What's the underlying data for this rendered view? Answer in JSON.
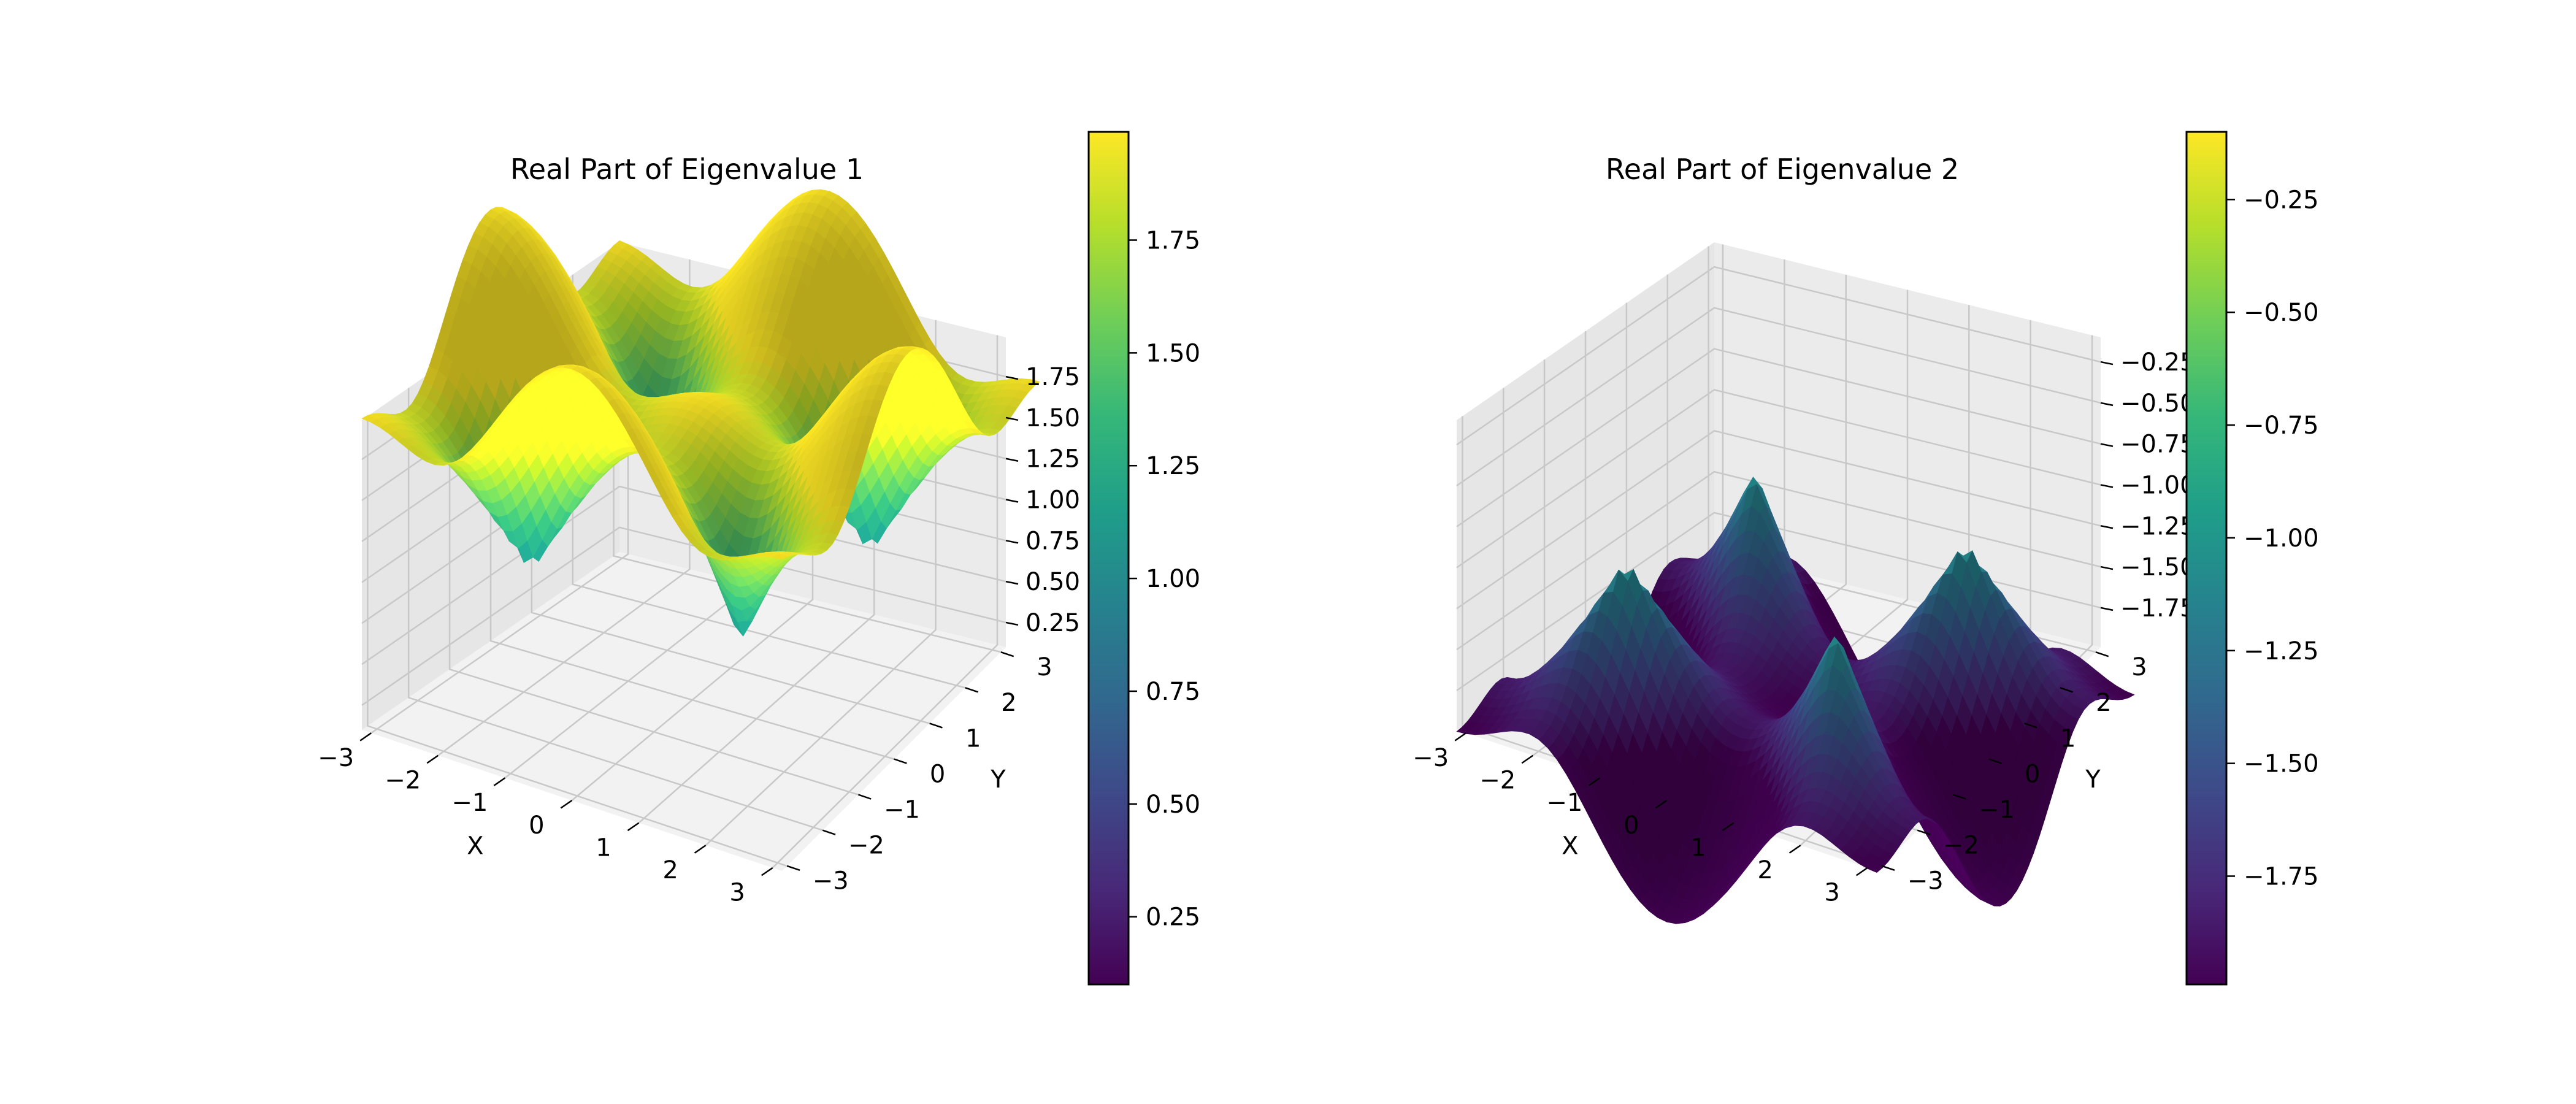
{
  "figure": {
    "colormap": "viridis",
    "colors": [
      "#440154",
      "#482878",
      "#3e4989",
      "#31688e",
      "#26828e",
      "#1f9e89",
      "#35b779",
      "#6ece58",
      "#b5de2b",
      "#fde725"
    ]
  },
  "chart_data": [
    {
      "type": "surface3d",
      "title": "Real Part of Eigenvalue 1",
      "xlabel": "X",
      "ylabel": "Y",
      "zlabel": "",
      "xlim": [
        -3.14,
        3.14
      ],
      "ylim": [
        -3.14,
        3.14
      ],
      "zlim": [
        0.1,
        1.99
      ],
      "x_ticks": [
        "−3",
        "−2",
        "−1",
        "0",
        "1",
        "2",
        "3"
      ],
      "y_ticks": [
        "−3",
        "−2",
        "−1",
        "0",
        "1",
        "2",
        "3"
      ],
      "z_ticks": [
        "0.25",
        "0.50",
        "0.75",
        "1.00",
        "1.25",
        "1.50",
        "1.75"
      ],
      "z_tick_values": [
        0.25,
        0.5,
        0.75,
        1.0,
        1.25,
        1.5,
        1.75
      ],
      "colorbar": {
        "vmin": 0.1,
        "vmax": 1.99,
        "ticks": [
          "0.25",
          "0.50",
          "0.75",
          "1.00",
          "1.25",
          "1.50",
          "1.75"
        ],
        "tick_values": [
          0.25,
          0.5,
          0.75,
          1.0,
          1.25,
          1.5,
          1.75
        ]
      },
      "grid": true
    },
    {
      "type": "surface3d",
      "title": "Real Part of Eigenvalue 2",
      "xlabel": "X",
      "ylabel": "Y",
      "zlabel": "",
      "xlim": [
        -3.14,
        3.14
      ],
      "ylim": [
        -3.14,
        3.14
      ],
      "zlim": [
        -1.99,
        -0.1
      ],
      "x_ticks": [
        "−3",
        "−2",
        "−1",
        "0",
        "1",
        "2",
        "3"
      ],
      "y_ticks": [
        "−3",
        "−2",
        "−1",
        "0",
        "1",
        "2",
        "3"
      ],
      "z_ticks": [
        "−1.75",
        "−1.50",
        "−1.25",
        "−1.00",
        "−0.75",
        "−0.50",
        "−0.25"
      ],
      "z_tick_values": [
        -1.75,
        -1.5,
        -1.25,
        -1.0,
        -0.75,
        -0.5,
        -0.25
      ],
      "colorbar": {
        "vmin": -1.99,
        "vmax": -0.1,
        "ticks": [
          "−1.75",
          "−1.50",
          "−1.25",
          "−1.00",
          "−0.75",
          "−0.50",
          "−0.25"
        ],
        "tick_values": [
          -1.75,
          -1.5,
          -1.25,
          -1.0,
          -0.75,
          -0.5,
          -0.25
        ]
      },
      "grid": true
    }
  ]
}
